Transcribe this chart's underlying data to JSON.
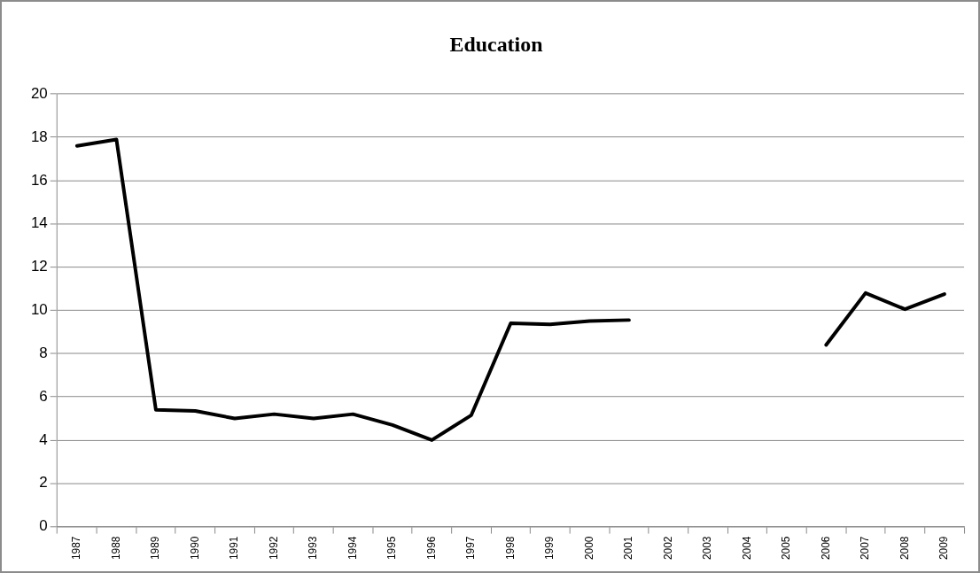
{
  "chart_data": {
    "type": "line",
    "title": "Education",
    "categories": [
      "1987",
      "1988",
      "1989",
      "1990",
      "1991",
      "1992",
      "1993",
      "1994",
      "1995",
      "1996",
      "1997",
      "1998",
      "1999",
      "2000",
      "2001",
      "2002",
      "2003",
      "2004",
      "2005",
      "2006",
      "2007",
      "2008",
      "2009"
    ],
    "series": [
      {
        "color": "#000000",
        "values": [
          17.6,
          17.9,
          5.4,
          5.35,
          5.0,
          5.2,
          5.0,
          5.2,
          4.7,
          4.0,
          5.15,
          9.4,
          9.35,
          9.5,
          9.55,
          null,
          null,
          null,
          null,
          8.4,
          10.8,
          10.05,
          10.75
        ]
      }
    ],
    "ylim": [
      0,
      20
    ],
    "yticks": [
      0,
      2,
      4,
      6,
      8,
      10,
      12,
      14,
      16,
      18,
      20
    ],
    "grid": "y",
    "legend": false,
    "marker": "none",
    "line_style": "solid"
  }
}
